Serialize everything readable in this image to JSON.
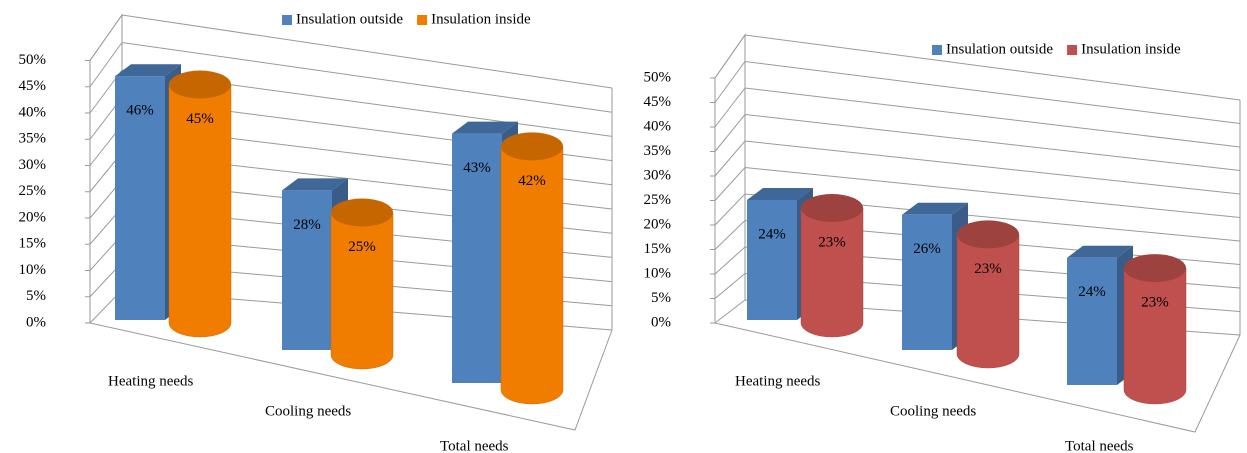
{
  "chart_data": [
    {
      "type": "bar3d",
      "categories": [
        "Heating needs",
        "Cooling needs",
        "Total needs"
      ],
      "series": [
        {
          "name": "Insulation outside",
          "color": "#4f81bd",
          "shape": "box",
          "values": [
            46,
            28,
            43
          ],
          "value_labels": [
            "46%",
            "28%",
            "43%"
          ]
        },
        {
          "name": "Insulation inside",
          "color": "#f07c00",
          "shape": "cylinder",
          "values": [
            45,
            25,
            42
          ],
          "value_labels": [
            "45%",
            "25%",
            "42%"
          ]
        }
      ],
      "ylim": [
        0,
        50
      ],
      "yticks": [
        {
          "value": 0,
          "label": "0%"
        },
        {
          "value": 5,
          "label": "5%"
        },
        {
          "value": 10,
          "label": "10%"
        },
        {
          "value": 15,
          "label": "15%"
        },
        {
          "value": 20,
          "label": "20%"
        },
        {
          "value": 25,
          "label": "25%"
        },
        {
          "value": 30,
          "label": "30%"
        },
        {
          "value": 35,
          "label": "35%"
        },
        {
          "value": 40,
          "label": "40%"
        },
        {
          "value": 45,
          "label": "45%"
        },
        {
          "value": 50,
          "label": "50%"
        }
      ],
      "grid": true,
      "legend": "top"
    },
    {
      "type": "bar3d",
      "categories": [
        "Heating needs",
        "Cooling needs",
        "Total needs"
      ],
      "series": [
        {
          "name": "Insulation outside",
          "color": "#4f81bd",
          "shape": "box",
          "values": [
            24,
            26,
            24
          ],
          "value_labels": [
            "24%",
            "26%",
            "24%"
          ]
        },
        {
          "name": "Insulation inside",
          "color": "#c0504d",
          "shape": "cylinder",
          "values": [
            23,
            23,
            23
          ],
          "value_labels": [
            "23%",
            "23%",
            "23%"
          ]
        }
      ],
      "ylim": [
        0,
        50
      ],
      "yticks": [
        {
          "value": 0,
          "label": "0%"
        },
        {
          "value": 5,
          "label": "5%"
        },
        {
          "value": 10,
          "label": "10%"
        },
        {
          "value": 15,
          "label": "15%"
        },
        {
          "value": 20,
          "label": "20%"
        },
        {
          "value": 25,
          "label": "25%"
        },
        {
          "value": 30,
          "label": "30%"
        },
        {
          "value": 35,
          "label": "35%"
        },
        {
          "value": 40,
          "label": "40%"
        },
        {
          "value": 45,
          "label": "45%"
        },
        {
          "value": 50,
          "label": "50%"
        }
      ],
      "grid": true,
      "legend": "top-right"
    }
  ]
}
